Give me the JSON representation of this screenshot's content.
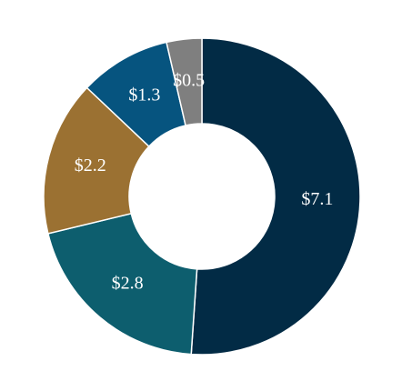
{
  "chart_data": {
    "type": "donut",
    "values": [
      7.1,
      2.8,
      2.2,
      1.3,
      0.5
    ],
    "value_labels": [
      "$7.1",
      "$2.8",
      "$2.2",
      "$1.3",
      "$0.5"
    ],
    "colors": [
      "#022b45",
      "#0d5e6e",
      "#9b7132",
      "#06547f",
      "#7f7f7f"
    ]
  }
}
